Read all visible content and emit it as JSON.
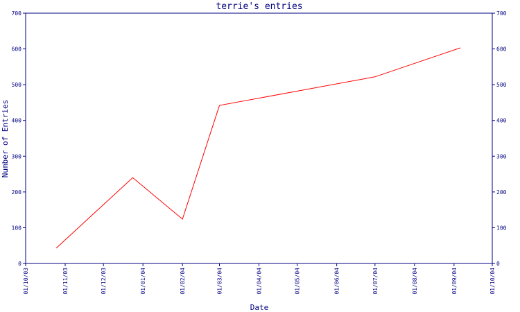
{
  "chart_data": {
    "type": "line",
    "title": "terrie's entries",
    "x_label": "Date",
    "y_label": "Number of Entries",
    "x": [
      "25/10/03",
      "24/12/03",
      "01/02/04",
      "01/03/04",
      "01/07/04",
      "06/09/04"
    ],
    "series": [
      {
        "name": "entries",
        "color": "#ff0000",
        "values": [
          43,
          240,
          124,
          442,
          522,
          603
        ]
      }
    ],
    "xlim": [
      "01/10/03",
      "01/10/04"
    ],
    "xticks": [
      "01/10/03",
      "01/11/03",
      "01/12/03",
      "01/01/04",
      "01/02/04",
      "01/03/04",
      "01/04/04",
      "01/05/04",
      "01/06/04",
      "01/07/04",
      "01/08/04",
      "01/09/04",
      "01/10/04"
    ],
    "ylim": [
      0,
      700
    ],
    "yticks": [
      0,
      100,
      200,
      300,
      400,
      500,
      600,
      700
    ],
    "axis_color": "#000080"
  }
}
